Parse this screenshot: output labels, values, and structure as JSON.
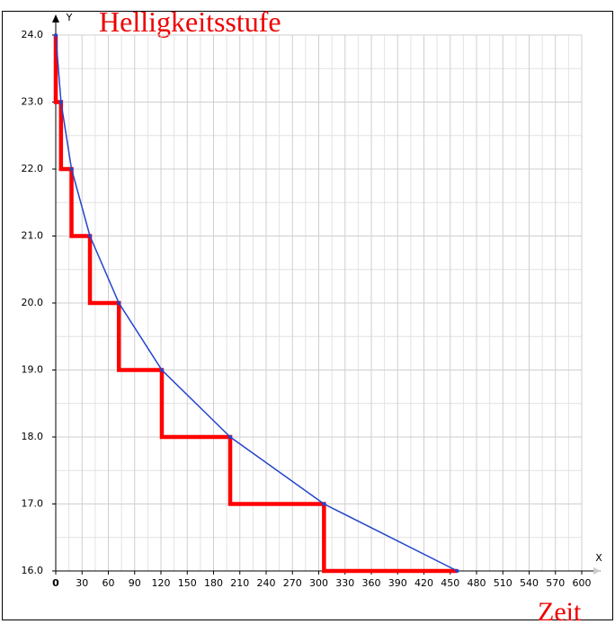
{
  "chart_data": {
    "type": "line",
    "title": "Helligkeitsstufe",
    "x_label": "Zeit",
    "x_axis_name": "X",
    "y_axis_name": "Y",
    "xlim": [
      0,
      600
    ],
    "ylim": [
      16,
      24
    ],
    "xticks": [
      0,
      30,
      60,
      90,
      120,
      150,
      180,
      210,
      240,
      270,
      300,
      330,
      360,
      390,
      420,
      450,
      480,
      510,
      540,
      570,
      600
    ],
    "yticks": [
      {
        "value": 16,
        "label": "16.0"
      },
      {
        "value": 17,
        "label": "17.0"
      },
      {
        "value": 18,
        "label": "18.0"
      },
      {
        "value": 19,
        "label": "19.0"
      },
      {
        "value": 20,
        "label": "20.0"
      },
      {
        "value": 21,
        "label": "21.0"
      },
      {
        "value": 22,
        "label": "22.0"
      },
      {
        "value": 23,
        "label": "23.0"
      },
      {
        "value": 24,
        "label": "24.0"
      }
    ],
    "grid": true,
    "series": [
      {
        "color": "#2244cc",
        "markers": true,
        "x": [
          0,
          6,
          18,
          39,
          72,
          121,
          199,
          306,
          458
        ],
        "values": [
          24,
          23,
          22,
          21,
          20,
          19,
          18,
          17,
          16
        ]
      },
      {
        "color": "#ff0000",
        "markers": false,
        "x": [
          0,
          0,
          6,
          6,
          18,
          18,
          39,
          39,
          72,
          72,
          121,
          121,
          199,
          199,
          306,
          306,
          458
        ],
        "values": [
          24,
          23,
          23,
          22,
          22,
          21,
          21,
          20,
          20,
          19,
          19,
          18,
          18,
          17,
          17,
          16,
          16
        ]
      }
    ]
  }
}
